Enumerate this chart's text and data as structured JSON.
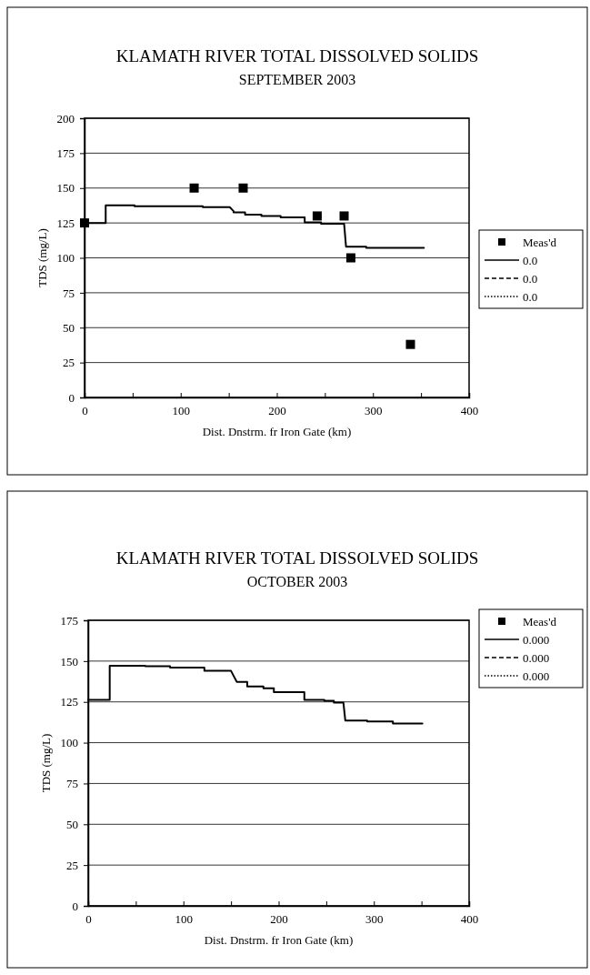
{
  "chart_data": [
    {
      "type": "line",
      "title": "KLAMATH RIVER TOTAL DISSOLVED SOLIDS",
      "subtitle": "SEPTEMBER 2003",
      "xlabel": "Dist. Dnstrm. fr Iron Gate  (km)",
      "ylabel": "TDS (mg/L)",
      "xlim": [
        0,
        400
      ],
      "ylim": [
        0,
        200
      ],
      "xticks": [
        0,
        {
          "value": 50,
          "label": null
        },
        100,
        {
          "value": 150,
          "label": null
        },
        200,
        {
          "value": 250,
          "label": null
        },
        300,
        {
          "value": 350,
          "label": null
        },
        400
      ],
      "yticks": [
        0,
        25,
        50,
        75,
        100,
        125,
        150,
        175,
        200
      ],
      "grid": "y",
      "legend": "right",
      "series": [
        {
          "name": "Meas'd",
          "type": "scatter",
          "marker": "square",
          "color": "#000000",
          "x": [
            0,
            114,
            165,
            242,
            270,
            277,
            339
          ],
          "values": [
            125,
            150,
            150,
            130,
            130,
            100,
            38
          ]
        },
        {
          "name": "0.0",
          "line_style": "solid",
          "color": "#000000",
          "x": [
            0,
            22,
            22,
            52,
            52,
            123,
            123,
            151,
            155,
            155,
            167,
            167,
            184,
            184,
            204,
            204,
            229,
            229,
            246,
            246,
            270,
            272,
            293,
            293,
            353
          ],
          "values": [
            125,
            125,
            137.7,
            137.7,
            136.9,
            136.9,
            136.3,
            136.3,
            133.5,
            132.6,
            132.6,
            131,
            131,
            130,
            130,
            129,
            129,
            125.4,
            125.4,
            124.4,
            124.4,
            108,
            108,
            107.2,
            107.2
          ]
        },
        {
          "name": "0.0",
          "line_style": "dashed",
          "color": "#000000"
        },
        {
          "name": "0.0",
          "line_style": "dotted",
          "color": "#000000"
        }
      ]
    },
    {
      "type": "line",
      "title": "KLAMATH RIVER TOTAL DISSOLVED SOLIDS",
      "subtitle": "OCTOBER 2003",
      "xlabel": "Dist. Dnstrm. fr Iron Gate  (km)",
      "ylabel": "TDS (mg/L)",
      "xlim": [
        0,
        400
      ],
      "ylim": [
        0,
        175
      ],
      "xticks": [
        0,
        {
          "value": 50,
          "label": null
        },
        100,
        {
          "value": 150,
          "label": null
        },
        200,
        {
          "value": 250,
          "label": null
        },
        300,
        {
          "value": 350,
          "label": null
        },
        400
      ],
      "yticks": [
        0,
        25,
        50,
        75,
        100,
        125,
        150,
        175
      ],
      "grid": "y",
      "legend": "right",
      "series": [
        {
          "name": "Meas'd",
          "type": "scatter",
          "marker": "square",
          "color": "#000000"
        },
        {
          "name": "0.000",
          "line_style": "solid",
          "color": "#000000",
          "x": [
            0,
            22.6,
            22.6,
            60,
            60,
            86,
            86,
            122,
            122,
            150,
            156,
            167,
            167,
            184,
            184,
            195,
            195,
            227,
            227,
            248,
            248,
            258,
            258,
            268,
            270,
            293,
            293,
            320,
            320,
            351
          ],
          "values": [
            126.3,
            126.3,
            147.2,
            147.2,
            146.8,
            146.8,
            146,
            146,
            144,
            144,
            137.3,
            137.3,
            134.5,
            134.5,
            133.4,
            133.4,
            131,
            131,
            126.3,
            126.3,
            125.7,
            125.7,
            124.6,
            124.6,
            113.6,
            113.6,
            113,
            113,
            111.8,
            111.8
          ]
        },
        {
          "name": "0.000",
          "line_style": "dashed",
          "color": "#000000"
        },
        {
          "name": "0.000",
          "line_style": "dotted",
          "color": "#000000"
        }
      ]
    }
  ]
}
